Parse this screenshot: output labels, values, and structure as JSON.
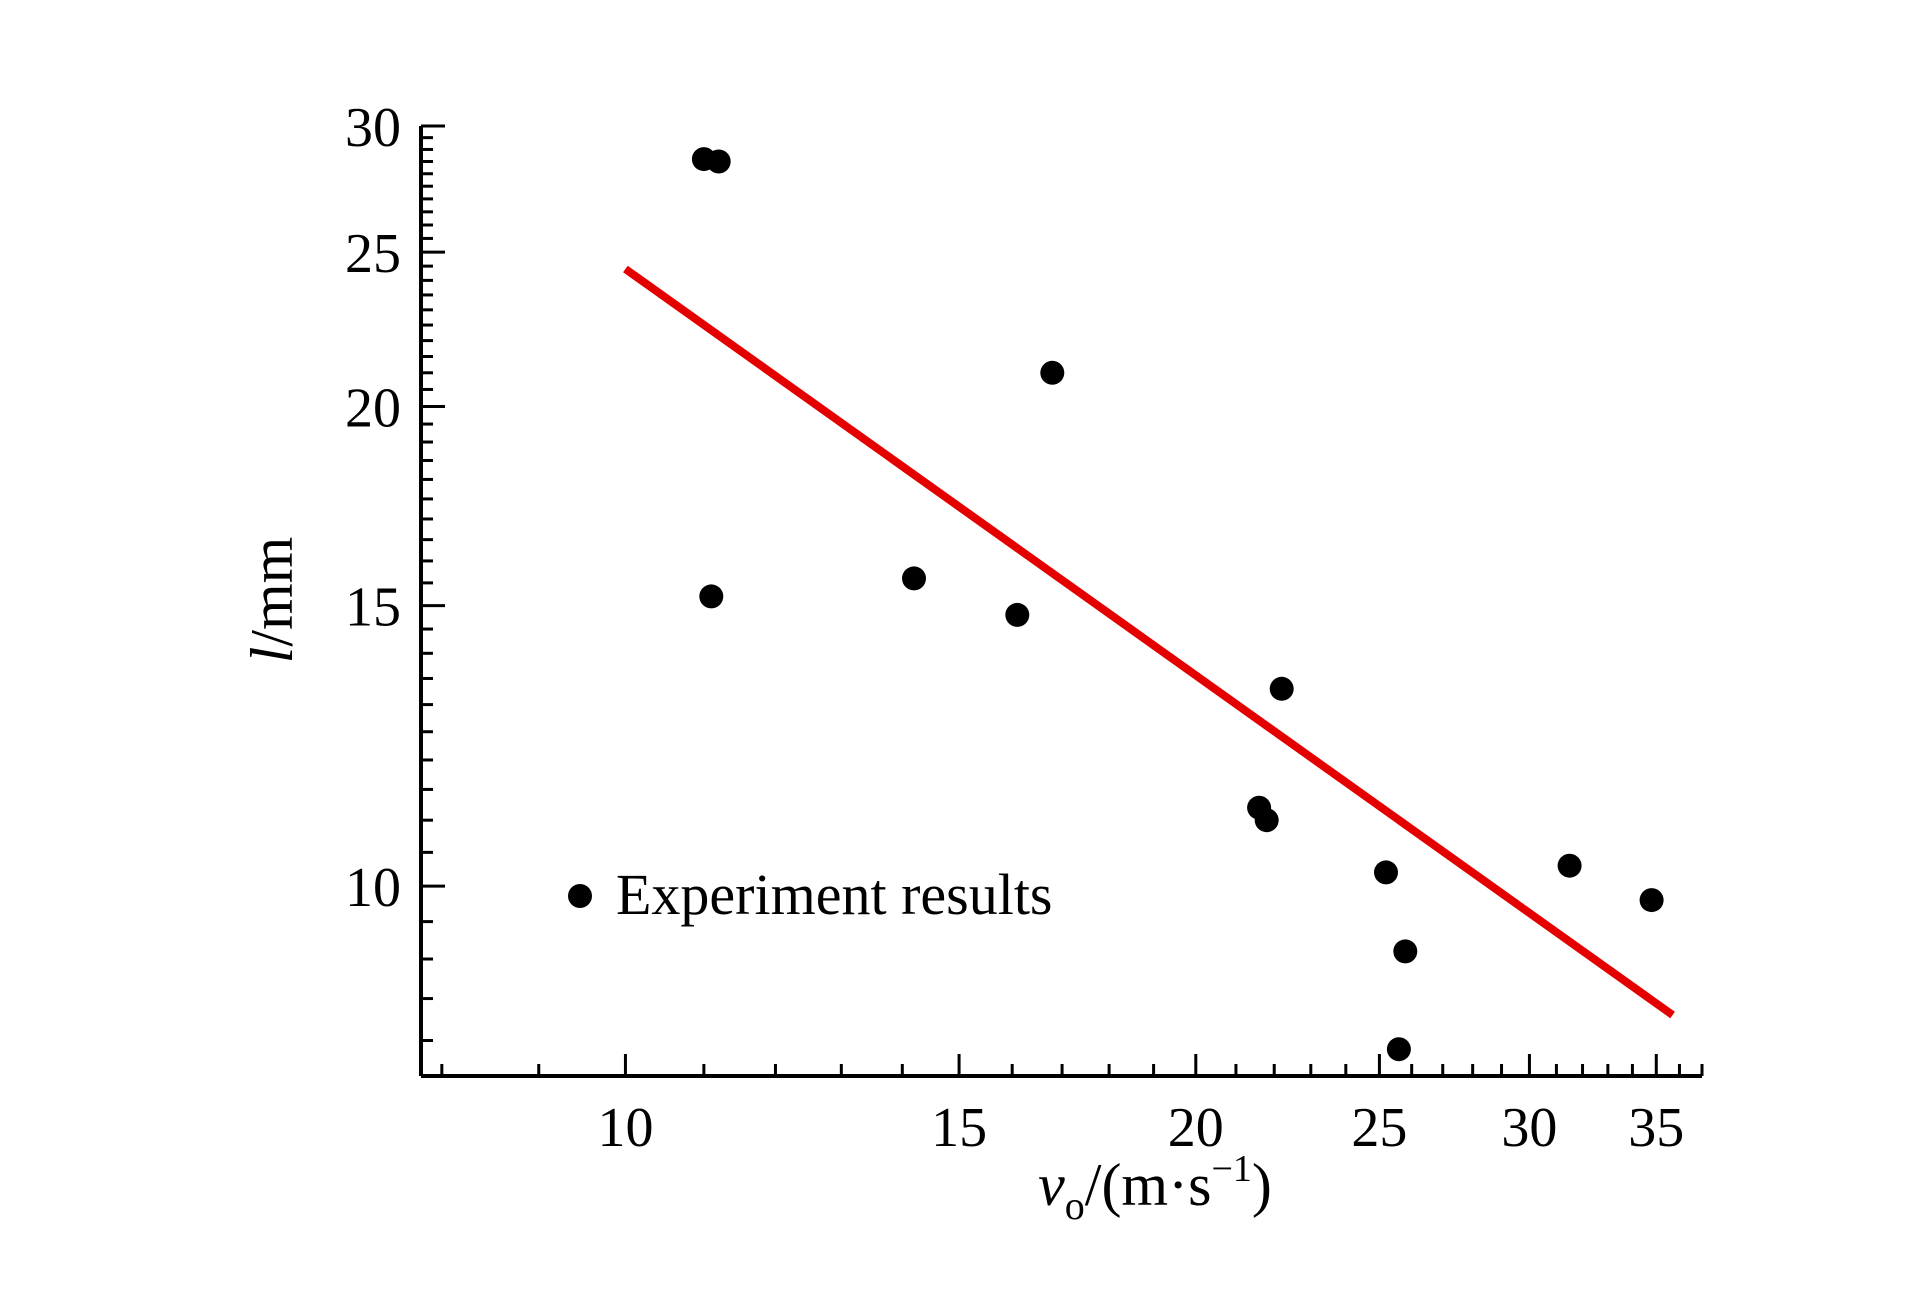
{
  "chart_data": {
    "type": "scatter",
    "title": "",
    "xlabel": {
      "main": "v",
      "sub": "o",
      "rest": "/(m·s",
      "sup": "−1",
      "close": ")"
    },
    "ylabel": {
      "italic": "l",
      "rest": "/mm"
    },
    "x_scale": "log",
    "y_scale": "log",
    "xlim": [
      7.8,
      37.0
    ],
    "ylim": [
      7.6,
      30.0
    ],
    "x_ticks": [
      10,
      15,
      20,
      25,
      30,
      35
    ],
    "y_ticks": [
      10,
      15,
      20,
      25,
      30
    ],
    "legend": {
      "position": "bottom-left",
      "label": "Experiment results"
    },
    "series": [
      {
        "name": "Experiment results",
        "type": "scatter",
        "color": "#000000",
        "points": [
          {
            "x": 11.0,
            "y": 28.6
          },
          {
            "x": 11.2,
            "y": 28.5
          },
          {
            "x": 11.1,
            "y": 15.2
          },
          {
            "x": 14.2,
            "y": 15.6
          },
          {
            "x": 16.1,
            "y": 14.8
          },
          {
            "x": 16.8,
            "y": 21.0
          },
          {
            "x": 21.6,
            "y": 11.2
          },
          {
            "x": 21.8,
            "y": 11.0
          },
          {
            "x": 22.2,
            "y": 13.3
          },
          {
            "x": 25.2,
            "y": 10.2
          },
          {
            "x": 25.6,
            "y": 7.9
          },
          {
            "x": 25.8,
            "y": 9.1
          },
          {
            "x": 31.5,
            "y": 10.3
          },
          {
            "x": 34.8,
            "y": 9.8
          }
        ]
      },
      {
        "name": "",
        "type": "line",
        "color": "#e50000",
        "points": [
          {
            "x": 10.0,
            "y": 24.4
          },
          {
            "x": 35.7,
            "y": 8.3
          }
        ]
      }
    ]
  }
}
